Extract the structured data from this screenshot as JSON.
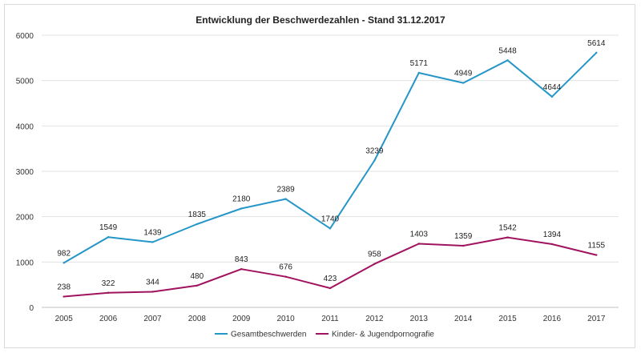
{
  "chart_data": {
    "type": "line",
    "title": "Entwicklung der Beschwerdezahlen - Stand 31.12.2017",
    "categories": [
      "2005",
      "2006",
      "2007",
      "2008",
      "2009",
      "2010",
      "2011",
      "2012",
      "2013",
      "2014",
      "2015",
      "2016",
      "2017"
    ],
    "series": [
      {
        "name": "Gesamtbeschwerden",
        "color": "#2596c8",
        "values": [
          982,
          1549,
          1439,
          1835,
          2180,
          2389,
          1740,
          3239,
          5171,
          4949,
          5448,
          4644,
          5614
        ]
      },
      {
        "name": "Kinder- & Jugendpornografie",
        "color": "#a0135f",
        "values": [
          238,
          322,
          344,
          480,
          843,
          676,
          423,
          958,
          1403,
          1359,
          1542,
          1394,
          1155
        ]
      }
    ],
    "ylim": [
      0,
      6000
    ],
    "yticks": [
      0,
      1000,
      2000,
      3000,
      4000,
      5000,
      6000
    ],
    "grid": true,
    "legend_position": "bottom"
  }
}
